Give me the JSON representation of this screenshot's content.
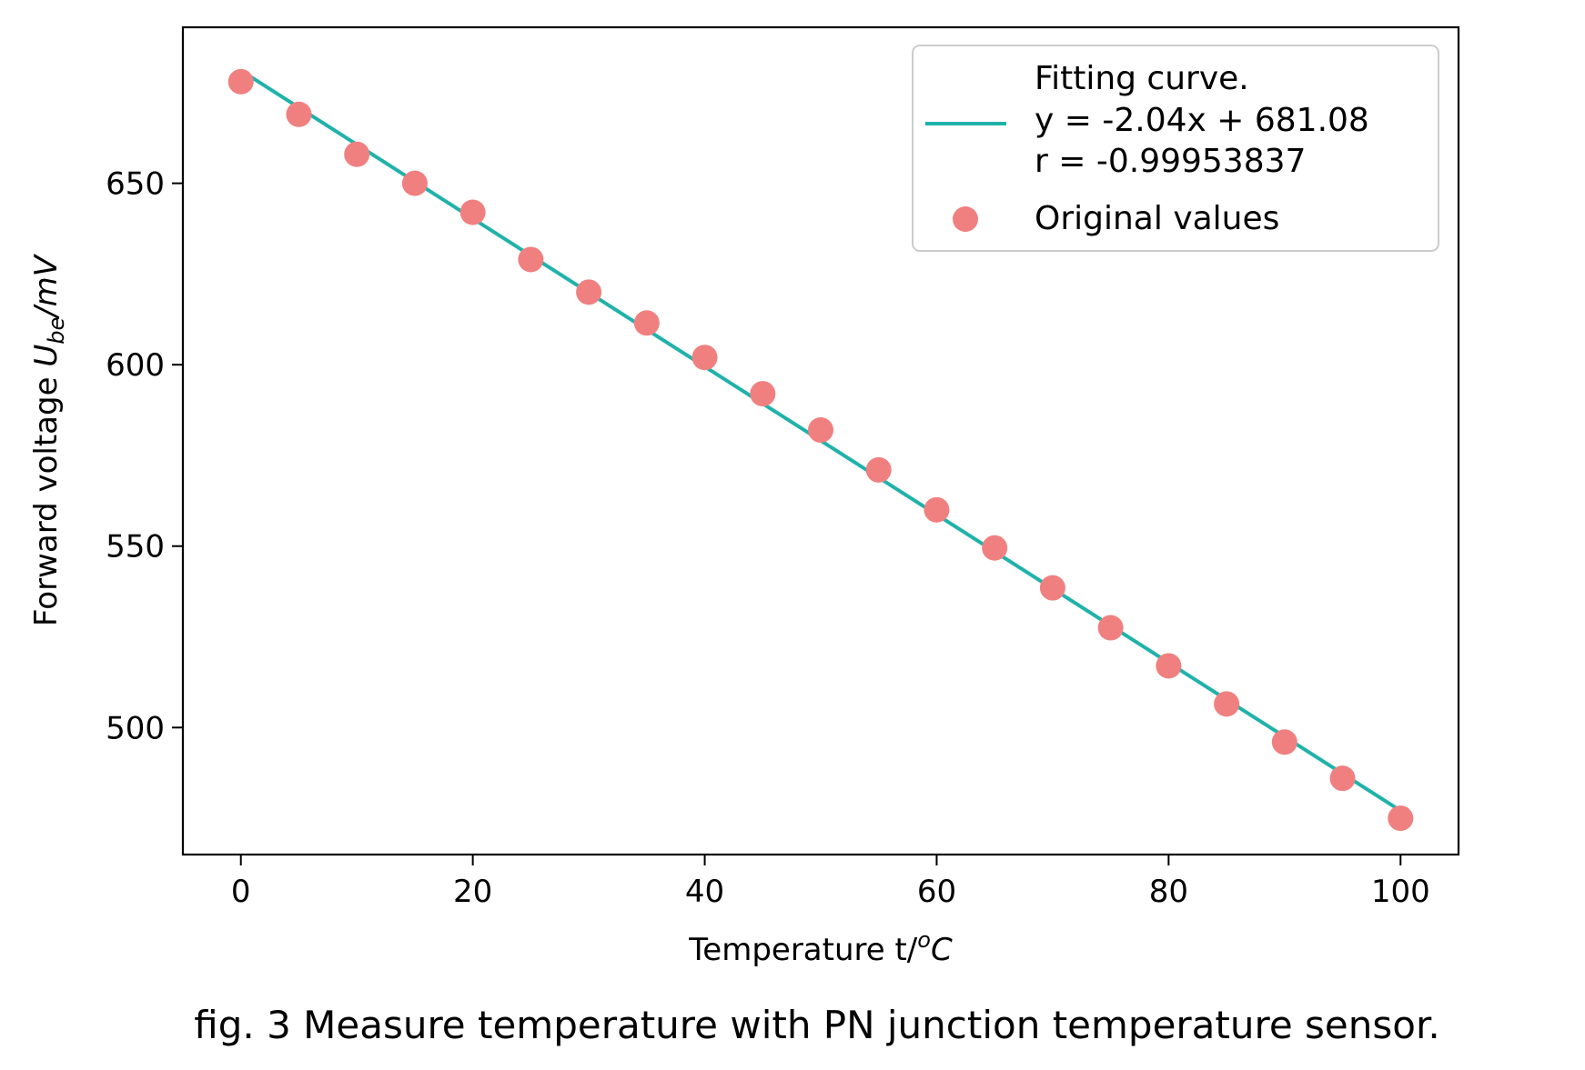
{
  "chart_data": {
    "type": "scatter",
    "x_ticks": [
      0,
      20,
      40,
      60,
      80,
      100
    ],
    "x_tick_labels": [
      "0",
      "20",
      "40",
      "60",
      "80",
      "100"
    ],
    "y_ticks": [
      500,
      550,
      600,
      650
    ],
    "y_tick_labels": [
      "500",
      "550",
      "600",
      "650"
    ],
    "xlim": [
      -5,
      105
    ],
    "ylim": [
      465,
      693
    ],
    "xlabel": {
      "main": "Temperature t/",
      "sup": "o",
      "unit": "C"
    },
    "ylabel": {
      "main": "Forward voltage ",
      "var": "U",
      "sub": "be",
      "unit": "/mV"
    },
    "grid": false,
    "legend_position": "top-right",
    "series": [
      {
        "kind": "line",
        "legend_lines": [
          "Fitting curve.",
          "y = -2.04x + 681.08",
          "r = -0.99953837"
        ],
        "color": "#20b2aa",
        "slope": -2.04,
        "intercept": 681.08,
        "x_range": [
          0,
          100
        ]
      },
      {
        "kind": "scatter",
        "name": "Original values",
        "color": "#f08080",
        "x": [
          0,
          5,
          10,
          15,
          20,
          25,
          30,
          35,
          40,
          45,
          50,
          55,
          60,
          65,
          70,
          75,
          80,
          85,
          90,
          95,
          100
        ],
        "y": [
          678,
          669,
          658,
          650,
          642,
          629,
          620,
          611.5,
          602,
          592,
          582,
          571,
          560,
          549.5,
          538.5,
          527.5,
          517,
          506.5,
          496,
          486,
          475
        ]
      }
    ],
    "caption": "fig. 3 Measure temperature with PN junction temperature sensor."
  }
}
